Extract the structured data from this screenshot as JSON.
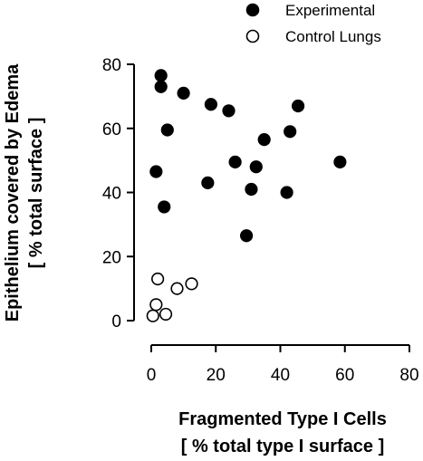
{
  "chart_data": {
    "type": "scatter",
    "title": "",
    "xlabel": "Fragmented Type I Cells",
    "xlabel_units": "[ %  total type I surface ]",
    "ylabel": "Epithelium covered by Edema",
    "ylabel_units": "[ %  total surface ]",
    "xlim": [
      0,
      80
    ],
    "ylim": [
      0,
      80
    ],
    "xticks": [
      0,
      20,
      40,
      60,
      80
    ],
    "yticks": [
      0,
      20,
      40,
      60,
      80
    ],
    "grid": false,
    "legend_position": "top-right",
    "series": [
      {
        "name": "Experimental",
        "marker": "filled-circle",
        "color": "#000000",
        "points": [
          {
            "x": 3,
            "y": 76.5
          },
          {
            "x": 3,
            "y": 73
          },
          {
            "x": 10,
            "y": 71
          },
          {
            "x": 18.5,
            "y": 67.5
          },
          {
            "x": 24,
            "y": 65.5
          },
          {
            "x": 45.5,
            "y": 67
          },
          {
            "x": 5,
            "y": 59.5
          },
          {
            "x": 43,
            "y": 59
          },
          {
            "x": 35,
            "y": 56.5
          },
          {
            "x": 26,
            "y": 49.5
          },
          {
            "x": 32.5,
            "y": 48
          },
          {
            "x": 58.5,
            "y": 49.5
          },
          {
            "x": 1.5,
            "y": 46.5
          },
          {
            "x": 17.5,
            "y": 43
          },
          {
            "x": 31,
            "y": 41
          },
          {
            "x": 42,
            "y": 40
          },
          {
            "x": 4,
            "y": 35.5
          },
          {
            "x": 29.5,
            "y": 26.5
          }
        ]
      },
      {
        "name": "Control Lungs",
        "marker": "open-circle",
        "color": "#000000",
        "points": [
          {
            "x": 2,
            "y": 13
          },
          {
            "x": 12.5,
            "y": 11.5
          },
          {
            "x": 8,
            "y": 10
          },
          {
            "x": 1.5,
            "y": 5
          },
          {
            "x": 0.5,
            "y": 1.5
          },
          {
            "x": 4.5,
            "y": 2
          }
        ]
      }
    ]
  }
}
